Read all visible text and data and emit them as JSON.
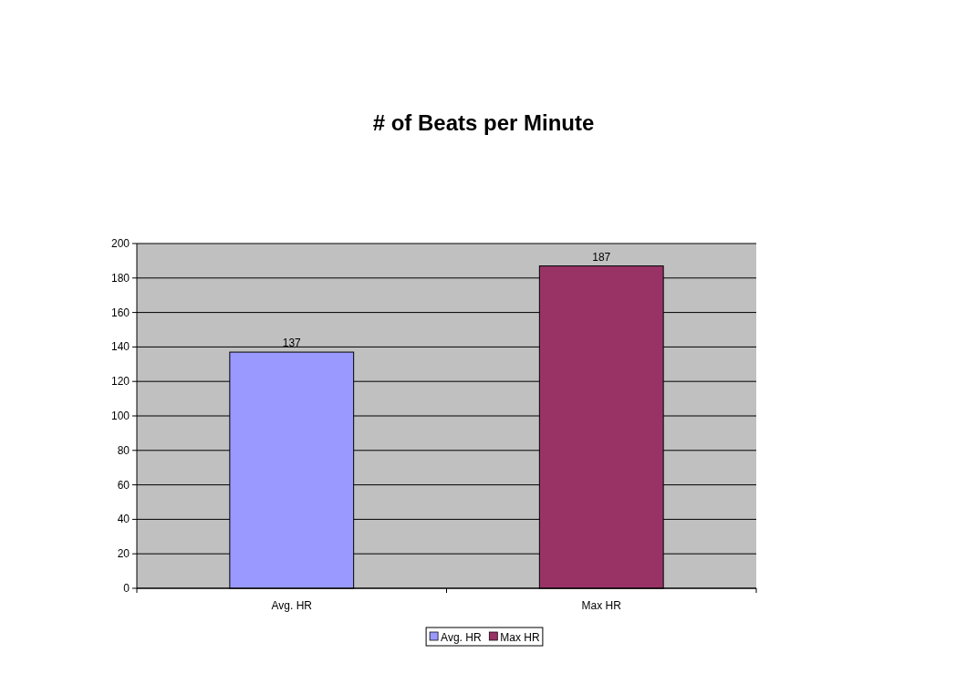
{
  "chart_data": {
    "type": "bar",
    "title": "# of Beats per Minute",
    "categories": [
      "Avg. HR",
      "Max HR"
    ],
    "series": [
      {
        "name": "Avg. HR",
        "color": "#9999ff",
        "values": [
          137,
          null
        ]
      },
      {
        "name": "Max HR",
        "color": "#993366",
        "values": [
          null,
          187
        ]
      }
    ],
    "ylim": [
      0,
      200
    ],
    "yticks": [
      0,
      20,
      40,
      60,
      80,
      100,
      120,
      140,
      160,
      180,
      200
    ],
    "grid": "y",
    "data_labels": true,
    "legend": "bottom"
  }
}
